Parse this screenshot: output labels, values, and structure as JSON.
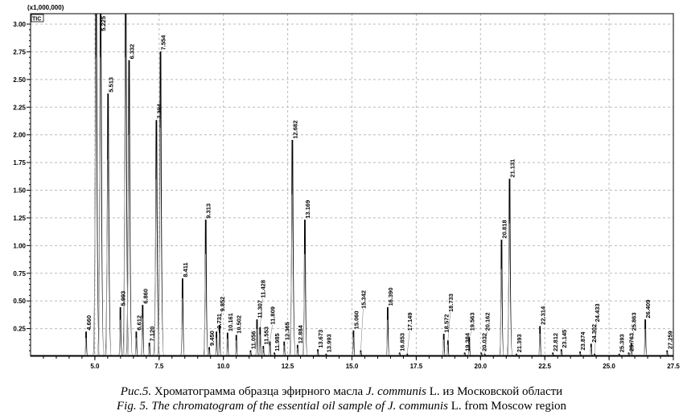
{
  "chart_data": {
    "type": "line",
    "subtype": "chromatogram",
    "y_multiplier_label": "(x1,000,000)",
    "trace_label": "TIC",
    "xlim": [
      2.5,
      27.5
    ],
    "ylim": [
      0,
      3.09
    ],
    "x_ticks": [
      "5.0",
      "7.5",
      "10.0",
      "12.5",
      "15.0",
      "17.5",
      "20.0",
      "22.5",
      "25.0",
      "27.5"
    ],
    "y_ticks": [
      "0.25",
      "0.50",
      "0.75",
      "1.00",
      "1.25",
      "1.50",
      "1.75",
      "2.00",
      "2.25",
      "2.50",
      "2.75",
      "3.00"
    ],
    "grid": true,
    "line_color": "#000000",
    "peaks": [
      {
        "rt": 4.66,
        "label": "4.660",
        "height": 0.22
      },
      {
        "rt": 5.05,
        "label": "",
        "height": 3.6
      },
      {
        "rt": 5.225,
        "label": "5.225",
        "height": 3.6
      },
      {
        "rt": 5.513,
        "label": "5.513",
        "height": 2.37
      },
      {
        "rt": 5.993,
        "label": "5.993",
        "height": 0.44
      },
      {
        "rt": 6.2,
        "label": "",
        "height": 3.6
      },
      {
        "rt": 6.332,
        "label": "6.332",
        "height": 2.67
      },
      {
        "rt": 6.612,
        "label": "6.612",
        "height": 0.22
      },
      {
        "rt": 6.86,
        "label": "6.860",
        "height": 0.46
      },
      {
        "rt": 7.12,
        "label": "7.120",
        "height": 0.12
      },
      {
        "rt": 7.394,
        "label": "7.394",
        "height": 2.13
      },
      {
        "rt": 7.554,
        "label": "7.554",
        "height": 2.75
      },
      {
        "rt": 8.411,
        "label": "8.411",
        "height": 0.7
      },
      {
        "rt": 9.313,
        "label": "9.313",
        "height": 1.23
      },
      {
        "rt": 9.45,
        "label": "9.450",
        "height": 0.08
      },
      {
        "rt": 9.731,
        "label": "9.731",
        "height": 0.22
      },
      {
        "rt": 9.852,
        "label": "9.852",
        "height": 0.28
      },
      {
        "rt": 10.161,
        "label": "10.161",
        "height": 0.21
      },
      {
        "rt": 10.502,
        "label": "10.502",
        "height": 0.19
      },
      {
        "rt": 11.056,
        "label": "11.056",
        "height": 0.05
      },
      {
        "rt": 11.307,
        "label": "11.307",
        "height": 0.33
      },
      {
        "rt": 11.428,
        "label": "11.428",
        "height": 0.26
      },
      {
        "rt": 11.553,
        "label": "11.553",
        "height": 0.09
      },
      {
        "rt": 11.809,
        "label": "11.809",
        "height": 0.13
      },
      {
        "rt": 11.985,
        "label": "11.985",
        "height": 0.03
      },
      {
        "rt": 12.365,
        "label": "12.365",
        "height": 0.13
      },
      {
        "rt": 12.682,
        "label": "12.682",
        "height": 1.95
      },
      {
        "rt": 12.884,
        "label": "12.884",
        "height": 0.1
      },
      {
        "rt": 13.169,
        "label": "13.169",
        "height": 1.23
      },
      {
        "rt": 13.673,
        "label": "13.673",
        "height": 0.06
      },
      {
        "rt": 13.993,
        "label": "13.993",
        "height": 0.02
      },
      {
        "rt": 15.06,
        "label": "15.060",
        "height": 0.23
      },
      {
        "rt": 15.342,
        "label": "15.342",
        "height": 0.05
      },
      {
        "rt": 16.39,
        "label": "16.390",
        "height": 0.44
      },
      {
        "rt": 16.853,
        "label": "16.853",
        "height": 0.03
      },
      {
        "rt": 17.149,
        "label": "17.149",
        "height": 0.02
      },
      {
        "rt": 18.572,
        "label": "18.572",
        "height": 0.2
      },
      {
        "rt": 18.733,
        "label": "18.733",
        "height": 0.14
      },
      {
        "rt": 19.384,
        "label": "19.384",
        "height": 0.03
      },
      {
        "rt": 19.563,
        "label": "19.563",
        "height": 0.17
      },
      {
        "rt": 20.032,
        "label": "20.032",
        "height": 0.03
      },
      {
        "rt": 20.162,
        "label": "20.162",
        "height": 0.02
      },
      {
        "rt": 20.818,
        "label": "20.818",
        "height": 1.05
      },
      {
        "rt": 21.131,
        "label": "21.131",
        "height": 1.6
      },
      {
        "rt": 21.393,
        "label": "21.393",
        "height": 0.02
      },
      {
        "rt": 22.314,
        "label": "22.314",
        "height": 0.27
      },
      {
        "rt": 22.812,
        "label": "22.812",
        "height": 0.03
      },
      {
        "rt": 23.145,
        "label": "23.145",
        "height": 0.06
      },
      {
        "rt": 23.874,
        "label": "23.874",
        "height": 0.04
      },
      {
        "rt": 24.302,
        "label": "24.302",
        "height": 0.11
      },
      {
        "rt": 24.433,
        "label": "24.433",
        "height": 0.02
      },
      {
        "rt": 25.393,
        "label": "25.393",
        "height": 0.02
      },
      {
        "rt": 25.763,
        "label": "25.763",
        "height": 0.03
      },
      {
        "rt": 25.863,
        "label": "25.863",
        "height": 0.12
      },
      {
        "rt": 26.409,
        "label": "26.409",
        "height": 0.33
      },
      {
        "rt": 27.259,
        "label": "27.259",
        "height": 0.05
      }
    ]
  },
  "caption": {
    "ru": {
      "prefix": "Рис.5.",
      "text1": " Хроматограмма образца эфирного масла ",
      "species": "J. communis",
      "text2": " L. из Московской области"
    },
    "en": {
      "prefix": "Fig. 5.",
      "text1": " The chromatogram of the essential oil sample of ",
      "species": "J. communis",
      "text2": " L. from Moscow region"
    }
  }
}
